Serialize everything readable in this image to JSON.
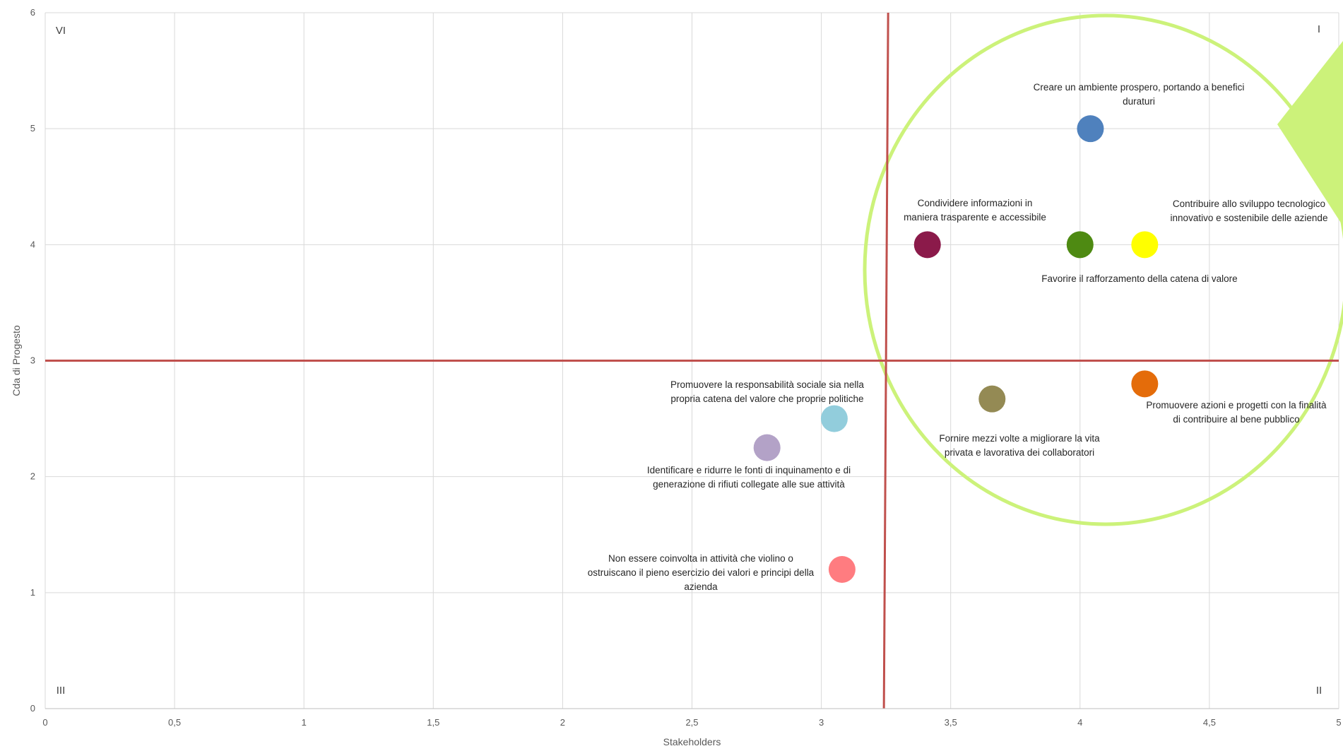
{
  "chart_data": {
    "type": "scatter",
    "title": "",
    "xlabel": "Stakeholders",
    "ylabel": "Cda di Progesto",
    "xlim": [
      0,
      5
    ],
    "ylim": [
      0,
      6
    ],
    "xticks": [
      "0",
      "0,5",
      "1",
      "1,5",
      "2",
      "2,5",
      "3",
      "3,5",
      "4",
      "4,5",
      "5"
    ],
    "yticks": [
      "0",
      "1",
      "2",
      "3",
      "4",
      "5",
      "6"
    ],
    "grid": true,
    "legend": "none",
    "threshold_lines": {
      "x": 3.25,
      "y": 3,
      "color": "#C0504D"
    },
    "quadrant_labels": {
      "top_left": "VI",
      "top_right": "I",
      "bottom_left": "III",
      "bottom_right": "II"
    },
    "highlight": {
      "shape": "circle",
      "color": "#CCF27A"
    },
    "points": [
      {
        "x": 4.04,
        "y": 5.0,
        "color": "#4F81BD",
        "label": [
          "Creare un ambiente prospero, portando a benefici",
          "duraturi"
        ]
      },
      {
        "x": 3.41,
        "y": 4.0,
        "color": "#8B1A4A",
        "label": [
          "Condividere informazioni in",
          "maniera trasparente e accessibile"
        ]
      },
      {
        "x": 4.0,
        "y": 4.0,
        "color": "#4E8A12",
        "label": [
          "Favorire il rafforzamento della catena di valore"
        ]
      },
      {
        "x": 4.25,
        "y": 4.0,
        "color": "#FFFF00",
        "label": [
          "Contribuire allo sviluppo tecnologico",
          "innovativo e sostenibile delle aziende"
        ]
      },
      {
        "x": 4.25,
        "y": 2.8,
        "color": "#E46C0A",
        "label": [
          "Promuovere azioni e progetti con la finalità",
          "di contribuire al bene pubblico"
        ]
      },
      {
        "x": 3.66,
        "y": 2.67,
        "color": "#948A54",
        "label": [
          "Fornire mezzi volte a migliorare la vita",
          "privata e lavorativa dei collaboratori"
        ]
      },
      {
        "x": 3.05,
        "y": 2.5,
        "color": "#92CDDC",
        "label": [
          "Promuovere la responsabilità sociale sia nella",
          "propria catena del valore che proprie politiche"
        ]
      },
      {
        "x": 2.79,
        "y": 2.25,
        "color": "#B3A2C7",
        "label": [
          "Identificare e ridurre le fonti di inquinamento e di",
          "generazione di rifiuti collegate alle sue attività"
        ]
      },
      {
        "x": 3.08,
        "y": 1.2,
        "color": "#FF7C80",
        "label": [
          "Non essere coinvolta in attività che violino o",
          "ostruiscano il pieno esercizio dei valori e principi della",
          "azienda"
        ]
      }
    ]
  }
}
